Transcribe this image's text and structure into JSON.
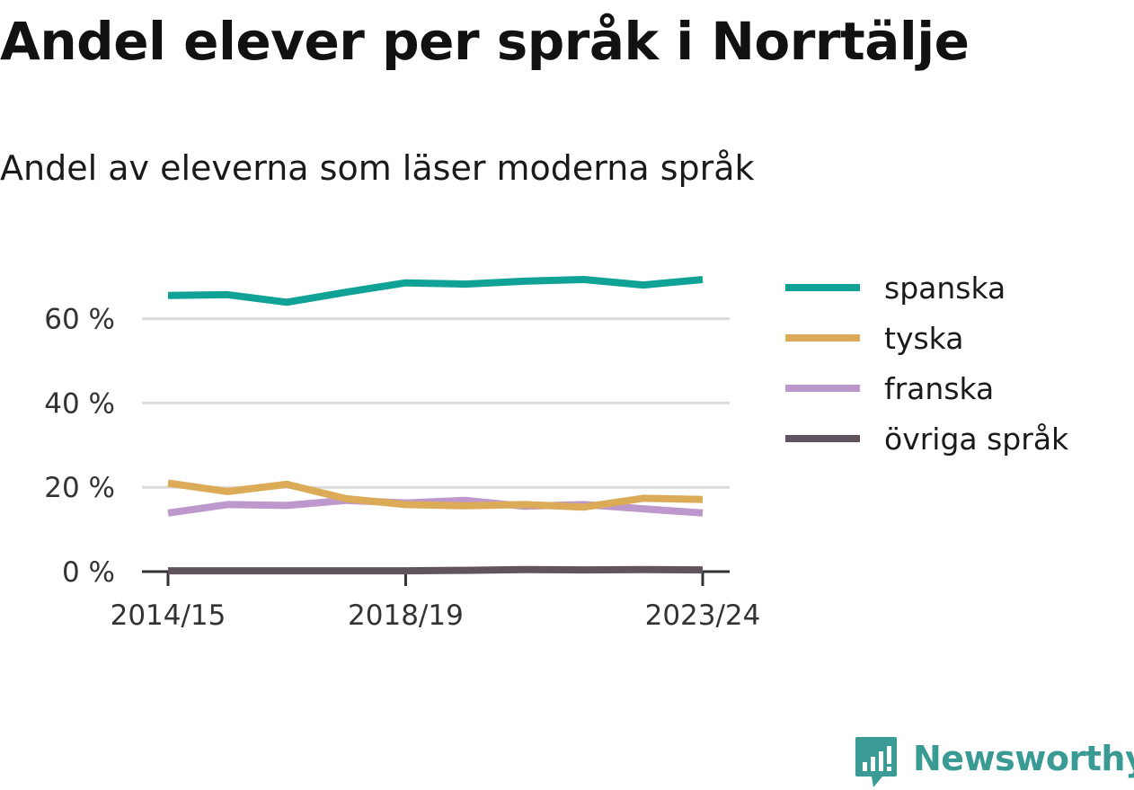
{
  "title": "Andel elever per språk i Norrtälje",
  "subtitle": "Andel av eleverna som läser moderna språk",
  "brand": {
    "name": "Newsworthy",
    "color": "#3a9a94",
    "icon": "bar-chart-speech-bubble-icon"
  },
  "chart_data": {
    "type": "line",
    "title": "Andel elever per språk i Norrtälje",
    "subtitle": "Andel av eleverna som läser moderna språk",
    "xlabel": "",
    "ylabel": "",
    "x": [
      "2014/15",
      "2015/16",
      "2016/17",
      "2017/18",
      "2018/19",
      "2019/20",
      "2020/21",
      "2021/22",
      "2022/23",
      "2023/24"
    ],
    "x_tick_labels": [
      "2014/15",
      "2018/19",
      "2023/24"
    ],
    "x_tick_index": [
      0,
      4,
      9
    ],
    "y_ticks": [
      0,
      20,
      40,
      60
    ],
    "y_tick_labels": [
      "0 %",
      "20 %",
      "40 %",
      "60 %"
    ],
    "ylim": [
      0,
      70
    ],
    "grid": true,
    "legend_position": "right",
    "series": [
      {
        "name": "spanska",
        "color": "#10a296",
        "values": [
          65.5,
          65.7,
          63.9,
          66.3,
          68.5,
          68.2,
          68.9,
          69.3,
          68.0,
          69.3
        ]
      },
      {
        "name": "tyska",
        "color": "#dbab58",
        "values": [
          21.0,
          19.0,
          20.7,
          17.3,
          15.9,
          15.6,
          15.9,
          15.3,
          17.4,
          17.1
        ]
      },
      {
        "name": "franska",
        "color": "#bd98cc",
        "values": [
          13.9,
          15.9,
          15.7,
          16.9,
          16.3,
          16.9,
          15.5,
          15.9,
          14.9,
          13.9
        ]
      },
      {
        "name": "övriga språk",
        "color": "#62545f",
        "values": [
          0.2,
          0.2,
          0.2,
          0.2,
          0.2,
          0.3,
          0.5,
          0.4,
          0.5,
          0.4
        ]
      }
    ]
  }
}
